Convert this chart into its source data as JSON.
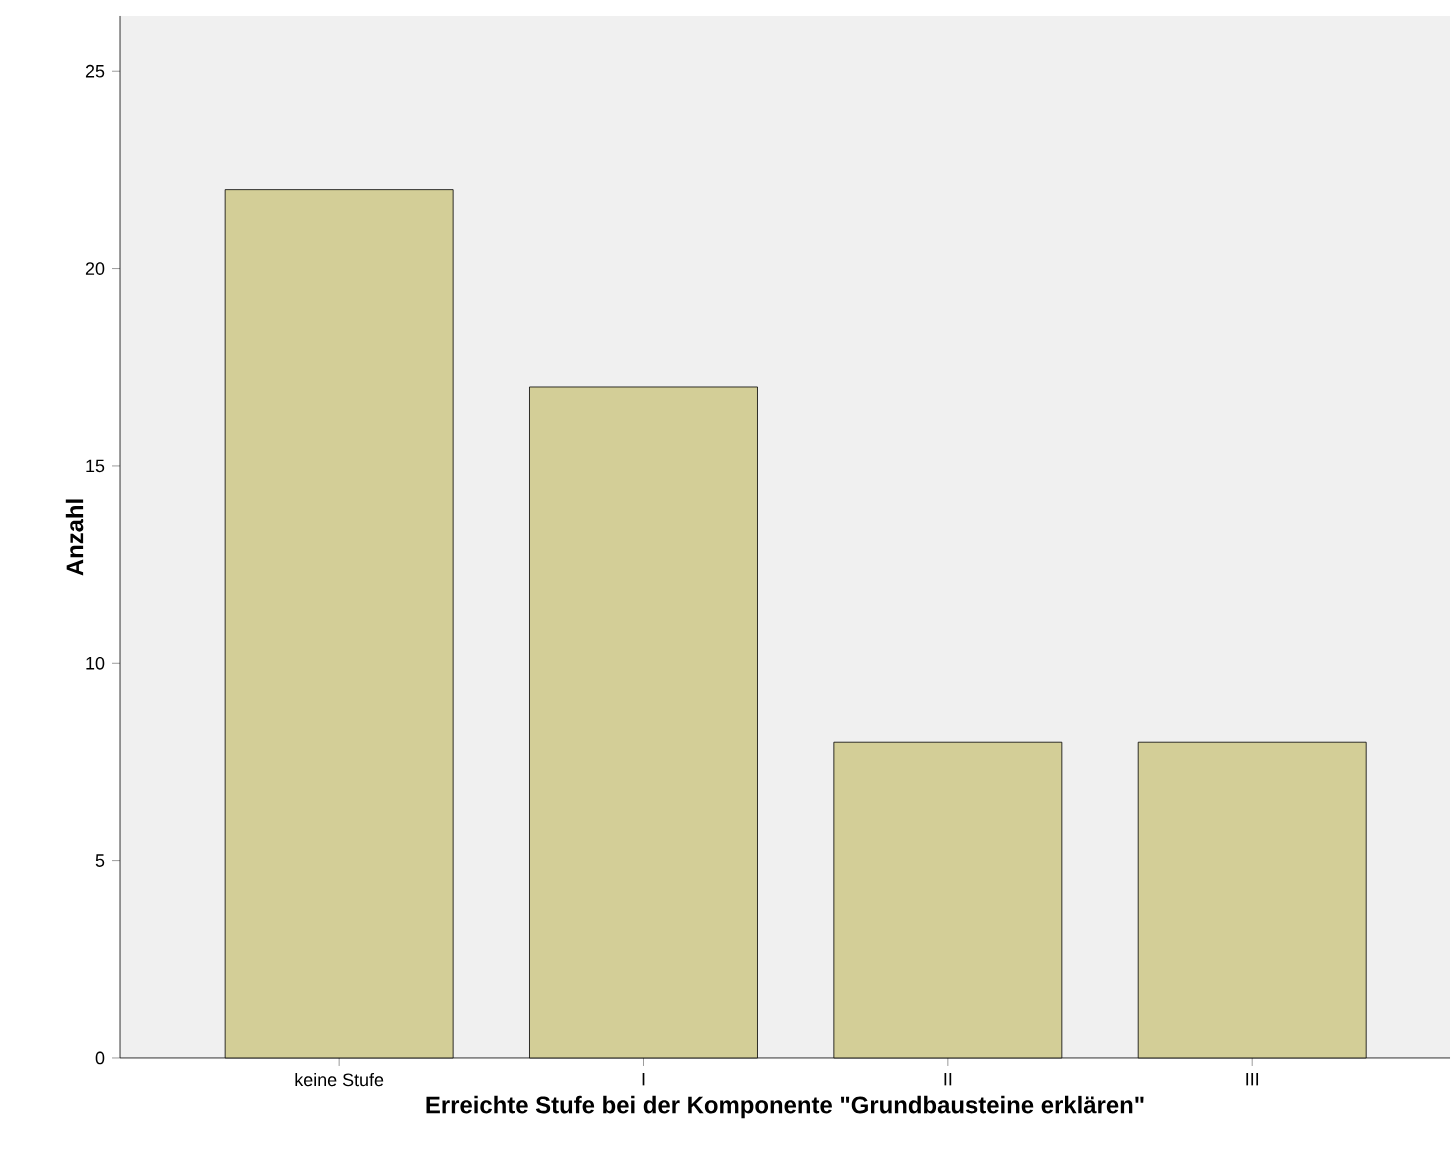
{
  "chart_data": {
    "type": "bar",
    "xlabel": "Erreichte Stufe bei der Komponente \"Grundbausteine erklären\"",
    "ylabel": "Anzahl",
    "categories": [
      "keine Stufe",
      "I",
      "II",
      "III"
    ],
    "values": [
      22,
      17,
      8,
      8
    ],
    "color": "#d3ce97",
    "ylim": [
      0,
      26.4
    ],
    "yticks": [
      0,
      5,
      10,
      15,
      20,
      25
    ]
  }
}
